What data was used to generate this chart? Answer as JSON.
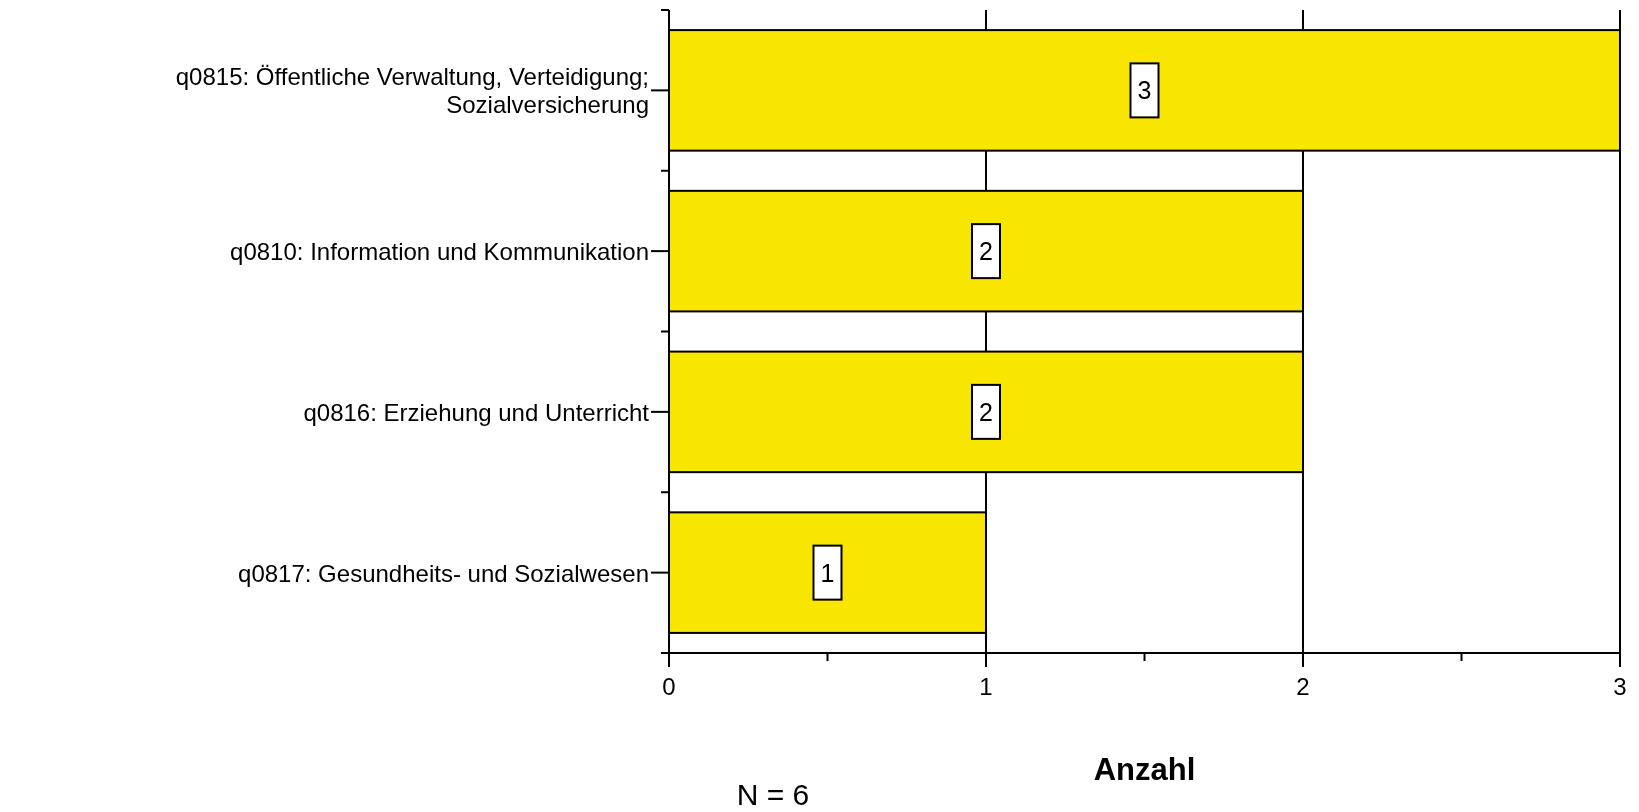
{
  "chart_data": {
    "type": "bar",
    "orientation": "horizontal",
    "categories": [
      "q0815: Öffentliche Verwaltung, Verteidigung; Sozialversicherung",
      "q0810: Information und Kommunikation",
      "q0816: Erziehung und Unterricht",
      "q0817: Gesundheits- und Sozialwesen"
    ],
    "values": [
      3,
      2,
      2,
      1
    ],
    "color": "#f9e600",
    "xlim": [
      0,
      3
    ],
    "xticks": [
      0,
      {
        "value": 0.5,
        "label": null
      },
      1,
      {
        "value": 1.5,
        "label": null
      },
      2,
      {
        "value": 2.5,
        "label": null
      },
      3
    ],
    "xlabel": "Anzahl",
    "grid": "x",
    "data_labels": true,
    "annotations": [
      "N = 6"
    ]
  }
}
